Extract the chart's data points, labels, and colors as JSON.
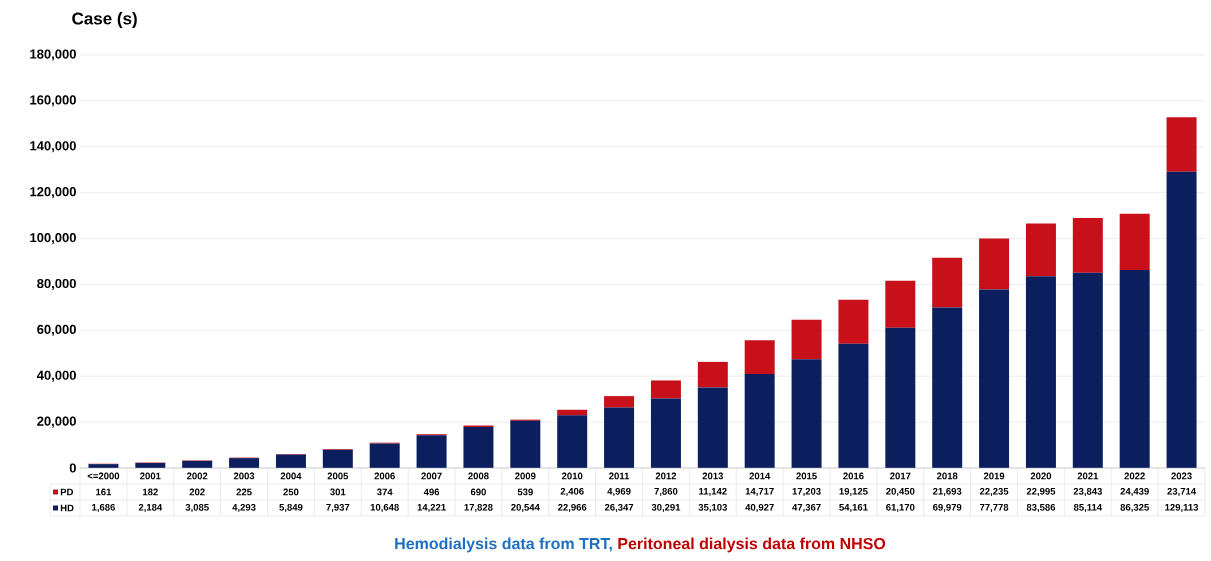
{
  "chart_data": {
    "type": "bar",
    "stacked": true,
    "ylabel": "Case (s)",
    "categories": [
      "<=2000",
      "2001",
      "2002",
      "2003",
      "2004",
      "2005",
      "2006",
      "2007",
      "2008",
      "2009",
      "2010",
      "2011",
      "2012",
      "2013",
      "2014",
      "2015",
      "2016",
      "2017",
      "2018",
      "2019",
      "2020",
      "2021",
      "2022",
      "2023"
    ],
    "series": [
      {
        "name": "HD",
        "color": "#0b1f5e",
        "values": [
          1686,
          2184,
          3085,
          4293,
          5849,
          7937,
          10648,
          14221,
          17828,
          20544,
          22966,
          26347,
          30291,
          35103,
          40927,
          47367,
          54161,
          61170,
          69979,
          77778,
          83586,
          85114,
          86325,
          129113
        ],
        "value_labels": [
          "1,686",
          "2,184",
          "3,085",
          "4,293",
          "5,849",
          "7,937",
          "10,648",
          "14,221",
          "17,828",
          "20,544",
          "22,966",
          "26,347",
          "30,291",
          "35,103",
          "40,927",
          "47,367",
          "54,161",
          "61,170",
          "69,979",
          "77,778",
          "83,586",
          "85,114",
          "86,325",
          "129,113"
        ]
      },
      {
        "name": "PD",
        "color": "#c8101a",
        "values": [
          161,
          182,
          202,
          225,
          250,
          301,
          374,
          496,
          690,
          539,
          2406,
          4969,
          7860,
          11142,
          14717,
          17203,
          19125,
          20450,
          21693,
          22235,
          22995,
          23843,
          24439,
          23714
        ],
        "value_labels": [
          "161",
          "182",
          "202",
          "225",
          "250",
          "301",
          "374",
          "496",
          "690",
          "539",
          "2,406",
          "4,969",
          "7,860",
          "11,142",
          "14,717",
          "17,203",
          "19,125",
          "20,450",
          "21,693",
          "22,235",
          "22,995",
          "23,843",
          "24,439",
          "23,714"
        ]
      }
    ],
    "ylim": [
      0,
      180000
    ],
    "yticks": [
      {
        "value": 0,
        "label": "0"
      },
      {
        "value": 20000,
        "label": "20,000"
      },
      {
        "value": 40000,
        "label": "40,000"
      },
      {
        "value": 60000,
        "label": "60,000"
      },
      {
        "value": 80000,
        "label": "80,000"
      },
      {
        "value": 100000,
        "label": "100,000"
      },
      {
        "value": 120000,
        "label": "120,000"
      },
      {
        "value": 140000,
        "label": "140,000"
      },
      {
        "value": 160000,
        "label": "160,000"
      },
      {
        "value": 180000,
        "label": "180,000"
      }
    ],
    "grid": "y",
    "legend": "bottom",
    "annotations": [
      "Hemodialysis data from TRT,",
      "Peritoneal dialysis data from NHSO"
    ]
  }
}
